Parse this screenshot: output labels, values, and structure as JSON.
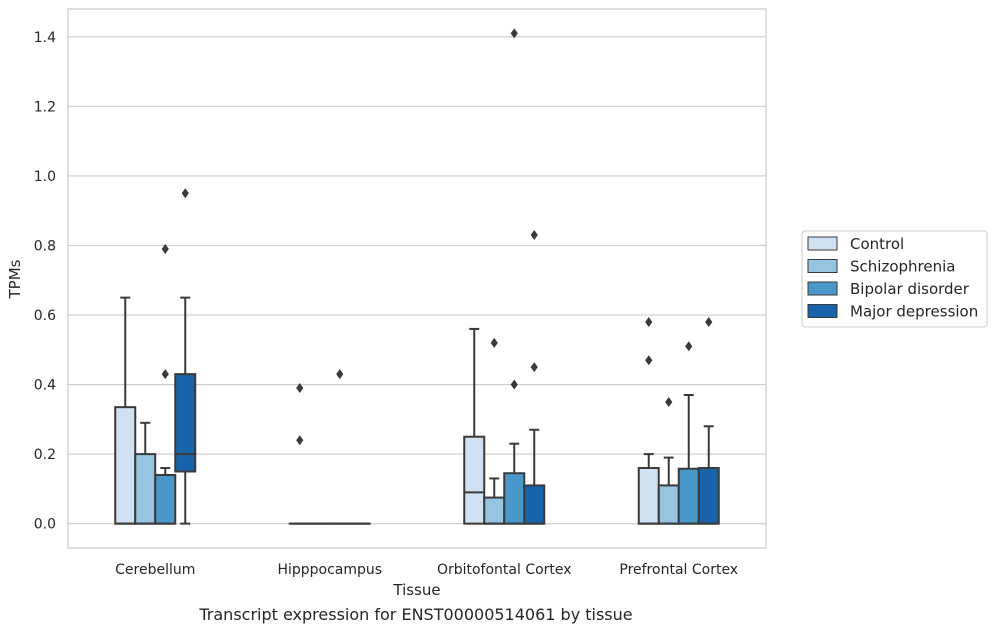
{
  "chart_data": {
    "type": "box",
    "categories": [
      "Cerebellum",
      "Hipppocampus",
      "Orbitofontal Cortex",
      "Prefrontal Cortex"
    ],
    "xlabel": "Tissue",
    "ylabel": "TPMs",
    "ylim": [
      -0.07,
      1.48
    ],
    "yticks": [
      "0.0",
      "0.2",
      "0.4",
      "0.6",
      "0.8",
      "1.0",
      "1.2",
      "1.4"
    ],
    "ytick_values": [
      0.0,
      0.2,
      0.4,
      0.6,
      0.8,
      1.0,
      1.2,
      1.4
    ],
    "grid": "horizontal",
    "legend_position": "right",
    "series": [
      {
        "name": "Control",
        "color": "#d0e1f2",
        "boxes": [
          {
            "min": 0.0,
            "q1": 0.0,
            "median": 0.0,
            "q3": 0.335,
            "max": 0.65,
            "outliers": []
          },
          {
            "min": 0.0,
            "q1": 0.0,
            "median": 0.0,
            "q3": 0.0,
            "max": 0.0,
            "outliers": [
              0.39,
              0.24
            ]
          },
          {
            "min": 0.0,
            "q1": 0.0,
            "median": 0.09,
            "q3": 0.25,
            "max": 0.56,
            "outliers": []
          },
          {
            "min": 0.0,
            "q1": 0.0,
            "median": 0.0,
            "q3": 0.16,
            "max": 0.2,
            "outliers": [
              0.58,
              0.47
            ]
          }
        ]
      },
      {
        "name": "Schizophrenia",
        "color": "#94c4df",
        "boxes": [
          {
            "min": 0.0,
            "q1": 0.0,
            "median": 0.0,
            "q3": 0.2,
            "max": 0.29,
            "outliers": []
          },
          {
            "min": 0.0,
            "q1": 0.0,
            "median": 0.0,
            "q3": 0.0,
            "max": 0.0,
            "outliers": []
          },
          {
            "min": 0.0,
            "q1": 0.0,
            "median": 0.0,
            "q3": 0.075,
            "max": 0.13,
            "outliers": [
              0.52
            ]
          },
          {
            "min": 0.0,
            "q1": 0.0,
            "median": 0.0,
            "q3": 0.11,
            "max": 0.19,
            "outliers": [
              0.35
            ]
          }
        ]
      },
      {
        "name": "Bipolar disorder",
        "color": "#4a98c9",
        "boxes": [
          {
            "min": 0.0,
            "q1": 0.0,
            "median": 0.0,
            "q3": 0.14,
            "max": 0.16,
            "outliers": [
              0.79,
              0.43
            ]
          },
          {
            "min": 0.0,
            "q1": 0.0,
            "median": 0.0,
            "q3": 0.0,
            "max": 0.0,
            "outliers": [
              0.43
            ]
          },
          {
            "min": 0.0,
            "q1": 0.0,
            "median": 0.0,
            "q3": 0.145,
            "max": 0.23,
            "outliers": [
              1.41,
              0.4
            ]
          },
          {
            "min": 0.0,
            "q1": 0.0,
            "median": 0.0,
            "q3": 0.158,
            "max": 0.37,
            "outliers": [
              0.51
            ]
          }
        ]
      },
      {
        "name": "Major depression",
        "color": "#1764ab",
        "boxes": [
          {
            "min": 0.0,
            "q1": 0.15,
            "median": 0.2,
            "q3": 0.43,
            "max": 0.65,
            "outliers": [
              0.95
            ]
          },
          {
            "min": 0.0,
            "q1": 0.0,
            "median": 0.0,
            "q3": 0.0,
            "max": 0.0,
            "outliers": []
          },
          {
            "min": 0.0,
            "q1": 0.0,
            "median": 0.0,
            "q3": 0.11,
            "max": 0.27,
            "outliers": [
              0.83,
              0.45
            ]
          },
          {
            "min": 0.0,
            "q1": 0.0,
            "median": 0.0,
            "q3": 0.16,
            "max": 0.28,
            "outliers": [
              0.58
            ]
          }
        ]
      }
    ]
  },
  "caption": "Transcript expression for ENST00000514061 by tissue"
}
